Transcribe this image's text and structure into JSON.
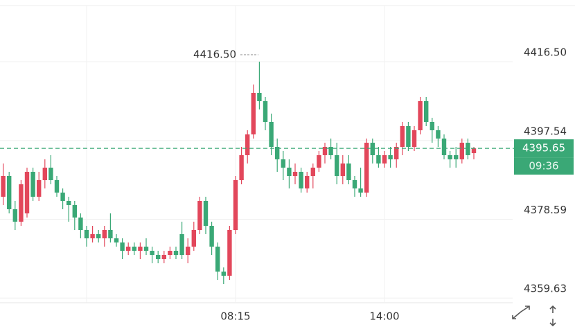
{
  "chart_data": {
    "type": "candlestick",
    "categories": [
      null,
      null,
      null,
      null,
      null,
      null,
      null,
      null,
      null,
      null,
      null,
      null,
      null,
      null,
      null,
      null,
      null,
      null,
      null,
      null,
      null,
      null,
      null,
      null,
      null,
      null,
      null,
      null,
      null,
      null,
      null,
      null,
      null,
      null,
      null,
      null,
      null,
      null,
      null,
      "08:15",
      null,
      null,
      null,
      null,
      null,
      null,
      null,
      null,
      null,
      null,
      null,
      null,
      null,
      null,
      null,
      null,
      null,
      null,
      null,
      null,
      null,
      null,
      null,
      null,
      "14:00",
      null,
      null,
      null,
      null,
      null,
      null,
      null,
      null,
      null,
      null,
      null,
      null,
      null,
      null,
      null
    ],
    "open": [
      4384,
      4389,
      4381,
      4378,
      4380,
      4390,
      4384,
      4388,
      4391,
      4388,
      4385,
      4383,
      4382,
      4379,
      4376,
      4374,
      4375,
      4374,
      4376,
      4374,
      4373,
      4371,
      4372,
      4371,
      4372,
      4371,
      4370,
      4369,
      4370,
      4371,
      4375,
      4370,
      4372,
      4376,
      4383,
      4377,
      4372,
      4366,
      4365,
      4376,
      4388,
      4394,
      4399,
      4409,
      4407,
      4402,
      4396,
      4393,
      4391,
      4389,
      4390,
      4386,
      4389,
      4391,
      4394,
      4396,
      4394,
      4389,
      4392,
      4388,
      4386,
      4385,
      4397,
      4394,
      4392,
      4394,
      4393,
      4396,
      4401,
      4396,
      4400,
      4407,
      4402,
      4400,
      4398,
      4394,
      4394,
      4393,
      4397,
      4394.5
    ],
    "high": [
      4392,
      4390,
      4383,
      4388,
      4391,
      4391,
      4390,
      4393,
      4394,
      4389,
      4386,
      4384,
      4383,
      4380,
      4377,
      4377,
      4376,
      4377,
      4380,
      4375,
      4374,
      4373,
      4373,
      4373,
      4374,
      4372,
      4371,
      4371,
      4372,
      4372,
      4378,
      4374,
      4378,
      4384,
      4384,
      4378,
      4373,
      4367,
      4377,
      4389,
      4396,
      4400,
      4411,
      4416.5,
      4408,
      4404,
      4398,
      4395,
      4393,
      4392,
      4391,
      4390,
      4392,
      4395,
      4397,
      4398,
      4397,
      4394,
      4394,
      4389,
      4391,
      4398,
      4398,
      4396,
      4395,
      4396,
      4397,
      4402,
      4402,
      4401,
      4408,
      4408,
      4403,
      4401,
      4399,
      4395,
      4396,
      4398,
      4398,
      4396
    ],
    "low": [
      4382,
      4380,
      4376,
      4377,
      4379,
      4383,
      4383,
      4386,
      4387,
      4384,
      4381,
      4378,
      4376,
      4374,
      4372,
      4373,
      4373,
      4372,
      4373,
      4372,
      4369,
      4370,
      4370,
      4369,
      4370,
      4368,
      4368,
      4368,
      4369,
      4369,
      4369,
      4368,
      4371,
      4375,
      4375,
      4370,
      4364,
      4363,
      4364,
      4375,
      4387,
      4392,
      4398,
      4405,
      4400,
      4394,
      4390,
      4388,
      4386,
      4387,
      4385,
      4385,
      4386,
      4390,
      4392,
      4393,
      4387,
      4387,
      4387,
      4384,
      4384,
      4384,
      4392,
      4391,
      4391,
      4391,
      4391,
      4394,
      4395,
      4395,
      4399,
      4401,
      4397,
      4396,
      4393,
      4391,
      4391,
      4392,
      4393,
      4393
    ],
    "close": [
      4389,
      4381,
      4378,
      4387,
      4390,
      4384,
      4388,
      4391,
      4388,
      4385,
      4383,
      4382,
      4379,
      4376,
      4374,
      4375,
      4374,
      4376,
      4374,
      4373,
      4371,
      4372,
      4371,
      4372,
      4371,
      4370,
      4369,
      4370,
      4371,
      4370,
      4370,
      4372,
      4376,
      4383,
      4377,
      4372,
      4366,
      4365,
      4376,
      4388,
      4394,
      4399,
      4409,
      4407,
      4402,
      4396,
      4393,
      4391,
      4389,
      4390,
      4386,
      4389,
      4391,
      4394,
      4396,
      4394,
      4389,
      4392,
      4388,
      4386,
      4385,
      4397,
      4394,
      4392,
      4394,
      4393,
      4396,
      4401,
      4396,
      4400,
      4407,
      4402,
      4400,
      4398,
      4394,
      4393,
      4393,
      4397,
      4394,
      4395.65
    ],
    "up_color": "#e2475b",
    "down_color": "#3aa876",
    "ylim": [
      4358.5,
      4430
    ],
    "yticks": [
      {
        "value": 4416.5,
        "label": "4416.50"
      },
      4397.54,
      4378.59,
      4359.63
    ],
    "grid": true,
    "high_marker": {
      "value": 4416.5,
      "label": "4416.50"
    },
    "current_price": 4395.65,
    "current_time": "09:36"
  }
}
